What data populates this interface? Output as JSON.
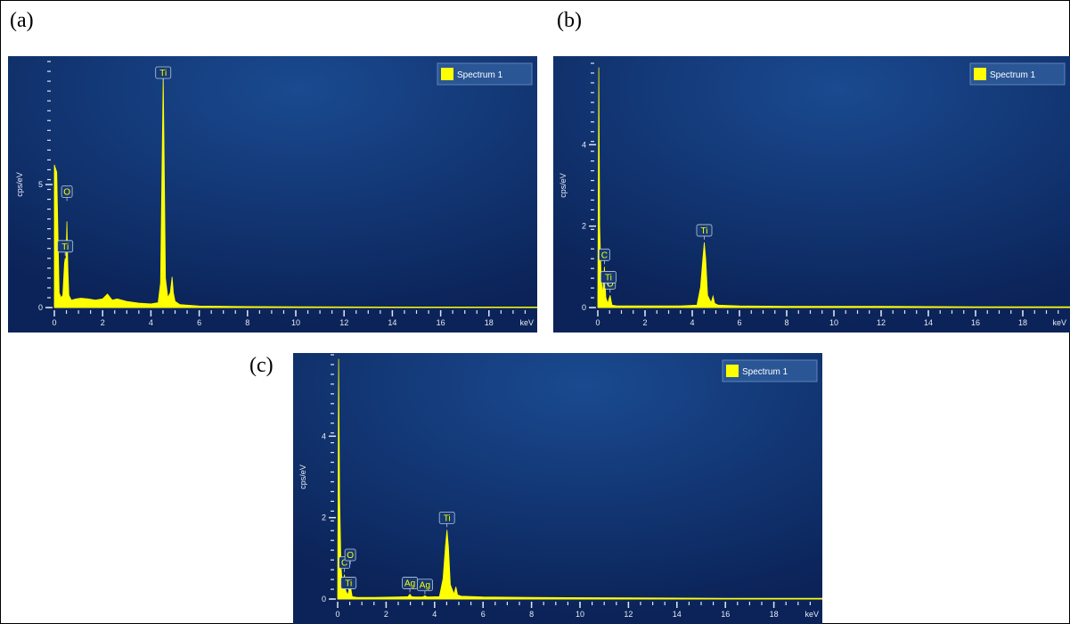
{
  "panels": [
    {
      "letter": "(a)"
    },
    {
      "letter": "(b)"
    },
    {
      "letter": "(c)"
    }
  ],
  "colors": {
    "background_top": "#1a4a90",
    "background_bottom": "#0b2358",
    "spectrum": "#ffff00",
    "axis": "#dfe6f2"
  },
  "chart_data": [
    {
      "type": "area",
      "panel": "(a)",
      "ylabel": "cps/eV",
      "xunit": "keV",
      "xlim": [
        0,
        20
      ],
      "ylim": [
        0,
        10
      ],
      "x_ticks": [
        0,
        2,
        4,
        6,
        8,
        10,
        12,
        14,
        16,
        18
      ],
      "y_ticks": [
        0,
        5
      ],
      "legend": {
        "label": "Spectrum 1",
        "position": "top-right"
      },
      "peaks": [
        {
          "label": "O",
          "x": 0.52,
          "y": 3.5
        },
        {
          "label": "Ti",
          "x": 0.45,
          "y": 2.0
        },
        {
          "label": "Ti",
          "x": 4.51,
          "y": 9.5
        }
      ],
      "series": [
        {
          "name": "Spectrum 1",
          "x": [
            0,
            0.1,
            0.2,
            0.28,
            0.35,
            0.42,
            0.45,
            0.48,
            0.52,
            0.56,
            0.6,
            0.7,
            0.9,
            1.1,
            1.4,
            1.7,
            2.0,
            2.2,
            2.4,
            2.6,
            3.0,
            3.5,
            4.0,
            4.3,
            4.4,
            4.45,
            4.51,
            4.56,
            4.6,
            4.7,
            4.8,
            4.88,
            4.93,
            5.0,
            5.2,
            6.0,
            8.0,
            10.0,
            14.0,
            18.0,
            20.0
          ],
          "y": [
            5.8,
            5.5,
            0.6,
            0.4,
            0.5,
            1.8,
            2.0,
            1.9,
            3.5,
            1.6,
            0.5,
            0.3,
            0.35,
            0.38,
            0.35,
            0.3,
            0.35,
            0.55,
            0.3,
            0.35,
            0.25,
            0.18,
            0.15,
            0.2,
            1.0,
            5.0,
            9.5,
            5.0,
            1.2,
            0.4,
            0.6,
            1.25,
            0.6,
            0.25,
            0.12,
            0.06,
            0.04,
            0.03,
            0.02,
            0.02,
            0.02
          ]
        }
      ]
    },
    {
      "type": "area",
      "panel": "(b)",
      "ylabel": "cps/eV",
      "xunit": "keV",
      "xlim": [
        0,
        20
      ],
      "ylim": [
        0,
        6
      ],
      "x_ticks": [
        0,
        2,
        4,
        6,
        8,
        10,
        12,
        14,
        16,
        18
      ],
      "y_ticks": [
        0,
        2,
        4
      ],
      "legend": {
        "label": "Spectrum 1",
        "position": "top-right"
      },
      "peaks": [
        {
          "label": "C",
          "x": 0.28,
          "y": 1.0
        },
        {
          "label": "O",
          "x": 0.52,
          "y": 0.3
        },
        {
          "label": "Ti",
          "x": 0.45,
          "y": 0.1
        },
        {
          "label": "Ti",
          "x": 4.51,
          "y": 1.6
        }
      ],
      "series": [
        {
          "name": "Spectrum 1",
          "x": [
            0,
            0.04,
            0.08,
            0.14,
            0.2,
            0.28,
            0.34,
            0.42,
            0.52,
            0.6,
            0.8,
            1.5,
            2.5,
            3.5,
            4.2,
            4.35,
            4.45,
            4.51,
            4.57,
            4.65,
            4.8,
            4.88,
            4.95,
            5.1,
            6.0,
            8.0,
            12.0,
            16.0,
            20.0
          ],
          "y": [
            0.2,
            5.9,
            2.0,
            0.8,
            0.3,
            1.0,
            0.25,
            0.1,
            0.3,
            0.06,
            0.04,
            0.04,
            0.04,
            0.04,
            0.06,
            0.5,
            1.2,
            1.6,
            1.2,
            0.3,
            0.12,
            0.28,
            0.1,
            0.06,
            0.04,
            0.03,
            0.03,
            0.02,
            0.02
          ]
        }
      ]
    },
    {
      "type": "area",
      "panel": "(c)",
      "ylabel": "cps/eV",
      "xunit": "keV",
      "xlim": [
        0,
        20
      ],
      "ylim": [
        0,
        6
      ],
      "x_ticks": [
        0,
        2,
        4,
        6,
        8,
        10,
        12,
        14,
        16,
        18
      ],
      "y_ticks": [
        0,
        2,
        4
      ],
      "legend": {
        "label": "Spectrum 1",
        "position": "top-right"
      },
      "peaks": [
        {
          "label": "C",
          "x": 0.28,
          "y": 0.6
        },
        {
          "label": "O",
          "x": 0.52,
          "y": 0.35
        },
        {
          "label": "Ti",
          "x": 0.45,
          "y": 0.1
        },
        {
          "label": "Ag",
          "x": 2.98,
          "y": 0.1
        },
        {
          "label": "Ag",
          "x": 3.6,
          "y": 0.05
        },
        {
          "label": "Ti",
          "x": 4.51,
          "y": 1.7
        }
      ],
      "series": [
        {
          "name": "Spectrum 1",
          "x": [
            0,
            0.04,
            0.08,
            0.14,
            0.2,
            0.28,
            0.34,
            0.42,
            0.52,
            0.6,
            0.8,
            1.5,
            2.5,
            2.9,
            2.98,
            3.05,
            3.2,
            3.5,
            3.6,
            3.7,
            4.2,
            4.35,
            4.45,
            4.51,
            4.57,
            4.65,
            4.8,
            4.88,
            4.95,
            5.1,
            6.0,
            8.0,
            12.0,
            16.0,
            20.0
          ],
          "y": [
            0.2,
            5.9,
            2.5,
            0.8,
            0.3,
            0.6,
            0.2,
            0.1,
            0.35,
            0.06,
            0.04,
            0.04,
            0.05,
            0.06,
            0.12,
            0.06,
            0.05,
            0.05,
            0.08,
            0.05,
            0.06,
            0.5,
            1.3,
            1.7,
            1.3,
            0.35,
            0.12,
            0.3,
            0.1,
            0.07,
            0.05,
            0.04,
            0.03,
            0.02,
            0.02
          ]
        }
      ]
    }
  ]
}
